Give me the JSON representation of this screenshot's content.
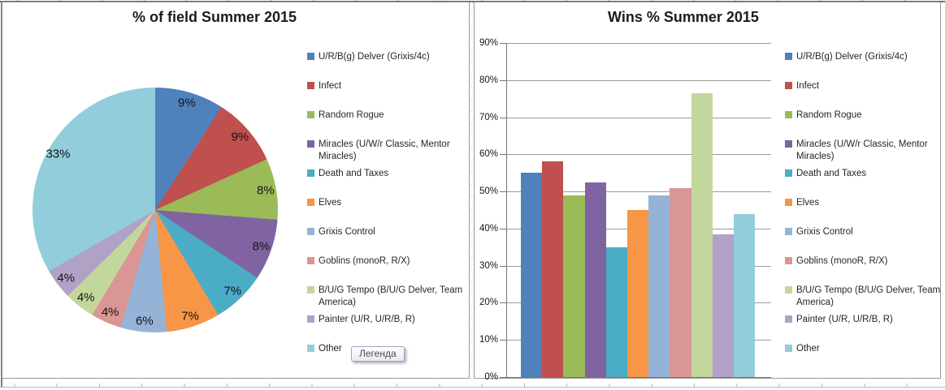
{
  "palette": [
    "#4F81BD",
    "#C0504D",
    "#9BBB59",
    "#8064A2",
    "#4BACC6",
    "#F79646",
    "#95B3D7",
    "#D99694",
    "#C3D69B",
    "#B2A1C7",
    "#92CDDC"
  ],
  "chart_data": [
    {
      "type": "pie",
      "title": "% of field Summer 2015",
      "labels": [
        "U/R/B(g) Delver (Grixis/4c)",
        "Infect",
        "Random Rogue",
        "Miracles (U/W/r Classic, Mentor Miracles)",
        "Death and Taxes",
        "Elves",
        "Grixis Control",
        "Goblins (monoR, R/X)",
        "B/U/G Tempo (B/U/G Delver, Team America)",
        "Painter (U/R, U/R/B, R)",
        "Other"
      ],
      "values": [
        9,
        9,
        8,
        8,
        7,
        7,
        6,
        4,
        4,
        4,
        33
      ],
      "data_labels": [
        "9%",
        "9%",
        "8%",
        "8%",
        "7%",
        "7%",
        "6%",
        "4%",
        "4%",
        "4%",
        "33%"
      ],
      "legend_position": "right"
    },
    {
      "type": "bar",
      "title": "Wins % Summer 2015",
      "categories": [
        "U/R/B(g) Delver (Grixis/4c)",
        "Infect",
        "Random Rogue",
        "Miracles (U/W/r Classic, Mentor Miracles)",
        "Death and Taxes",
        "Elves",
        "Grixis Control",
        "Goblins (monoR, R/X)",
        "B/U/G Tempo (B/U/G Delver, Team America)",
        "Painter (U/R, U/R/B, R)",
        "Other"
      ],
      "values": [
        55,
        58,
        49,
        52.5,
        35,
        45,
        49,
        51,
        76.5,
        38.5,
        44
      ],
      "ylim": [
        0,
        90
      ],
      "y_tick_labels": [
        "0%",
        "10%",
        "20%",
        "30%",
        "40%",
        "50%",
        "60%",
        "70%",
        "80%",
        "90%"
      ],
      "grid": true,
      "legend_position": "right"
    }
  ],
  "tooltip": {
    "text": "Легенда"
  }
}
